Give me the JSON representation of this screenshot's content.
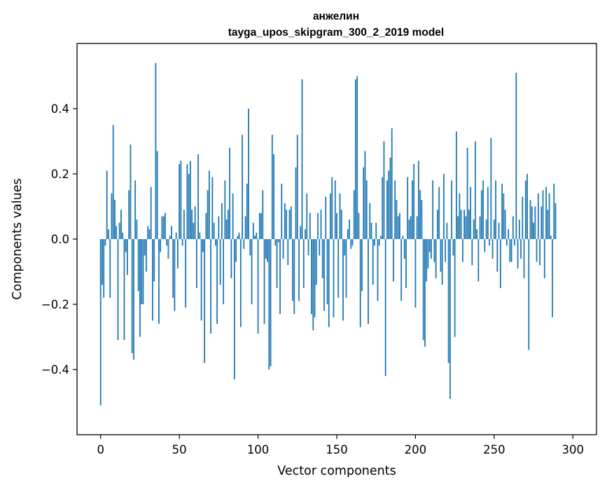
{
  "chart_data": {
    "type": "bar",
    "title": "анжелин",
    "subtitle": "tayga_upos_skipgram_300_2_2019 model",
    "xlabel": "Vector components",
    "ylabel": "Components values",
    "xlim": [
      -15,
      315
    ],
    "ylim": [
      -0.6,
      0.6
    ],
    "xticks": [
      0,
      50,
      100,
      150,
      200,
      250,
      300
    ],
    "yticks": [
      -0.4,
      -0.2,
      0.0,
      0.2,
      0.4
    ],
    "ytick_labels": [
      "−0.4",
      "−0.2",
      "0.0",
      "0.2",
      "0.4"
    ],
    "bar_color": "#1f77b4",
    "grid": false,
    "legend": "none",
    "series": [
      {
        "values": [
          -0.51,
          -0.14,
          -0.18,
          -0.02,
          0.21,
          0.03,
          -0.18,
          0.14,
          0.35,
          0.12,
          0.04,
          -0.31,
          0.05,
          0.09,
          0.02,
          -0.31,
          -0.04,
          -0.11,
          0.15,
          0.29,
          -0.35,
          -0.37,
          0.18,
          0.06,
          -0.16,
          -0.3,
          -0.2,
          -0.2,
          -0.05,
          -0.1,
          0.04,
          0.03,
          0.16,
          -0.25,
          -0.13,
          0.54,
          0.27,
          -0.26,
          -0.04,
          0.07,
          0.07,
          0.08,
          -0.02,
          -0.06,
          0.01,
          0.04,
          -0.18,
          -0.22,
          0.02,
          -0.09,
          0.23,
          0.24,
          -0.02,
          0.09,
          -0.21,
          0.23,
          0.2,
          0.24,
          0.09,
          0.05,
          0.1,
          -0.15,
          0.26,
          0.02,
          -0.25,
          -0.04,
          -0.38,
          0.08,
          0.15,
          0.21,
          -0.29,
          0.19,
          0.05,
          -0.02,
          -0.26,
          0.07,
          -0.14,
          0.11,
          -0.2,
          0.18,
          0.06,
          0.09,
          0.28,
          -0.12,
          0.14,
          -0.43,
          -0.07,
          0.01,
          0.02,
          -0.27,
          0.32,
          -0.03,
          0.07,
          0.17,
          0.4,
          -0.05,
          -0.2,
          0.05,
          0.01,
          0.02,
          -0.29,
          0.08,
          0.08,
          0.15,
          -0.26,
          -0.06,
          -0.07,
          -0.4,
          -0.39,
          0.32,
          0.26,
          -0.02,
          -0.15,
          -0.01,
          -0.23,
          0.17,
          -0.06,
          0.11,
          0.09,
          -0.08,
          0.09,
          0.1,
          -0.19,
          -0.23,
          0.22,
          0.32,
          -0.19,
          0.04,
          0.49,
          -0.15,
          0.03,
          0.14,
          -0.05,
          0.08,
          -0.23,
          -0.28,
          -0.24,
          -0.14,
          0.08,
          -0.05,
          0.09,
          -0.12,
          -0.22,
          0.13,
          -0.2,
          -0.27,
          0.14,
          0.19,
          -0.24,
          0.18,
          0.08,
          -0.18,
          0.14,
          0.09,
          -0.25,
          -0.05,
          -0.18,
          0.03,
          0.06,
          -0.03,
          -0.02,
          0.15,
          0.49,
          0.5,
          0.08,
          -0.27,
          -0.16,
          0.22,
          0.27,
          0.18,
          -0.26,
          0.11,
          0.05,
          -0.14,
          -0.02,
          0.05,
          -0.19,
          -0.02,
          0.01,
          0.19,
          0.3,
          -0.42,
          0.18,
          0.21,
          0.25,
          0.34,
          -0.13,
          0.18,
          0.12,
          0.07,
          0.08,
          -0.19,
          0.01,
          -0.06,
          -0.15,
          0.19,
          0.06,
          0.07,
          0.18,
          0.23,
          -0.21,
          0.07,
          0.24,
          0.15,
          0.12,
          -0.31,
          -0.33,
          -0.13,
          -0.09,
          -0.04,
          -0.06,
          0.18,
          -0.07,
          -0.12,
          0.09,
          0.16,
          -0.1,
          -0.14,
          0.2,
          -0.07,
          0.05,
          -0.38,
          -0.49,
          0.18,
          -0.05,
          -0.3,
          0.33,
          0.07,
          0.14,
          0.09,
          -0.07,
          0.09,
          0.07,
          0.28,
          0.09,
          0.16,
          -0.08,
          0.06,
          0.3,
          0.03,
          -0.13,
          0.07,
          0.15,
          0.18,
          -0.04,
          0.06,
          0.16,
          -0.02,
          0.31,
          -0.06,
          0.06,
          0.18,
          -0.1,
          0.05,
          -0.15,
          0.17,
          0.14,
          0.09,
          -0.02,
          0.03,
          -0.07,
          -0.07,
          0.07,
          -0.02,
          0.51,
          -0.09,
          0.06,
          -0.06,
          0.13,
          -0.12,
          0.18,
          0.2,
          -0.34,
          0.12,
          0.1,
          0.05,
          0.1,
          -0.07,
          0.14,
          -0.08,
          0.1,
          0.15,
          -0.12,
          0.16,
          0.09,
          0.14,
          0.01,
          -0.24,
          0.17,
          0.11
        ]
      }
    ]
  }
}
